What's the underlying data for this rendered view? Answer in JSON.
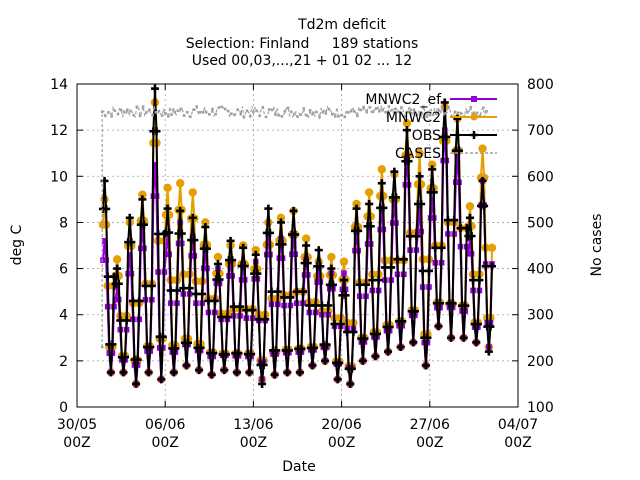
{
  "chart_data": {
    "type": "line",
    "title": "Td2m deficit",
    "subtitle1": "Selection: Finland     189 stations",
    "subtitle2": "Used 00,03,...,21 + 01 02 ... 12",
    "xlabel": "Date",
    "ylabel": "deg C",
    "y2label": "No cases",
    "ylim": [
      0,
      14
    ],
    "y2lim": [
      100,
      800
    ],
    "yticks": [
      "0",
      "2",
      "4",
      "6",
      "8",
      "10",
      "12",
      "14"
    ],
    "y2ticks": [
      "100",
      "200",
      "300",
      "400",
      "500",
      "600",
      "700",
      "800"
    ],
    "xticks": [
      {
        "day": 0,
        "line1": "30/05",
        "line2": "00Z"
      },
      {
        "day": 7,
        "line1": "06/06",
        "line2": "00Z"
      },
      {
        "day": 14,
        "line1": "13/06",
        "line2": "00Z"
      },
      {
        "day": 21,
        "line1": "20/06",
        "line2": "00Z"
      },
      {
        "day": 28,
        "line1": "27/06",
        "line2": "00Z"
      },
      {
        "day": 35,
        "line1": "04/07",
        "line2": "00Z"
      }
    ],
    "xlim_days": [
      0,
      35
    ],
    "grid": true,
    "legend_position": "top-right",
    "series": [
      {
        "name": "MNWC2_ef",
        "color": "#9400d3",
        "marker": "square",
        "axis": "y1"
      },
      {
        "name": "MNWC2",
        "color": "#e69f00",
        "marker": "circle",
        "axis": "y1"
      },
      {
        "name": "OBS",
        "color": "#000000",
        "marker": "plus",
        "axis": "y1"
      },
      {
        "name": "CASES",
        "color": "#a0a0a0",
        "marker": "dash",
        "axis": "y2"
      }
    ],
    "daily_profile": {
      "days": [
        2,
        3,
        4,
        5,
        6,
        7,
        8,
        9,
        10,
        11,
        12,
        13,
        14,
        15,
        16,
        17,
        18,
        19,
        20,
        21,
        22,
        23,
        24,
        25,
        26,
        27,
        28,
        29,
        30,
        31,
        32
      ],
      "obs_max": [
        9.8,
        6.0,
        8.2,
        9.0,
        13.8,
        8.6,
        8.5,
        8.2,
        7.8,
        6.2,
        7.2,
        6.9,
        6.6,
        8.6,
        8.0,
        8.5,
        7.0,
        6.8,
        6.0,
        5.5,
        8.6,
        8.8,
        9.7,
        10.2,
        12.0,
        10.0,
        10.3,
        13.2,
        12.5,
        8.2,
        9.8
      ],
      "obs_min": [
        1.5,
        1.5,
        1.0,
        1.5,
        1.2,
        1.5,
        1.8,
        1.6,
        1.4,
        1.6,
        1.5,
        1.5,
        1.0,
        1.4,
        1.5,
        1.5,
        1.8,
        2.0,
        1.2,
        1.0,
        2.0,
        2.2,
        2.4,
        2.6,
        2.8,
        1.8,
        3.5,
        3.0,
        3.0,
        2.8,
        2.4
      ],
      "mnwc2_max": [
        9.0,
        6.4,
        8.0,
        9.2,
        13.2,
        9.5,
        9.7,
        9.3,
        8.0,
        6.5,
        7.0,
        7.0,
        6.8,
        8.0,
        8.2,
        8.5,
        7.3,
        6.3,
        6.5,
        6.3,
        8.8,
        9.3,
        10.3,
        10.1,
        12.3,
        11.0,
        10.5,
        13.0,
        12.5,
        8.7,
        11.2
      ],
      "mnwc2_min": [
        1.5,
        1.5,
        1.0,
        1.5,
        1.2,
        1.5,
        1.8,
        1.6,
        1.4,
        1.6,
        1.5,
        1.5,
        1.2,
        1.4,
        1.5,
        1.5,
        1.8,
        2.0,
        1.2,
        1.0,
        2.0,
        2.2,
        2.4,
        2.6,
        2.8,
        1.8,
        3.5,
        3.0,
        3.0,
        2.8,
        2.6
      ],
      "ef_max": [
        7.2,
        5.2,
        6.6,
        7.8,
        10.5,
        7.5,
        8.0,
        7.4,
        6.8,
        6.0,
        6.4,
        6.2,
        6.3,
        7.5,
        7.3,
        7.5,
        6.4,
        6.0,
        5.8,
        5.8,
        7.6,
        7.9,
        8.6,
        8.9,
        10.8,
        8.6,
        9.0,
        12.0,
        10.9,
        7.3,
        9.8
      ],
      "ef_min": [
        1.5,
        1.5,
        1.0,
        1.5,
        1.2,
        1.5,
        1.8,
        1.6,
        1.4,
        1.6,
        1.5,
        1.5,
        1.2,
        1.4,
        1.5,
        1.5,
        1.8,
        2.0,
        1.2,
        1.0,
        2.0,
        2.2,
        2.4,
        2.6,
        2.8,
        1.8,
        3.5,
        3.0,
        3.0,
        2.8,
        2.6
      ],
      "cases_level": 740,
      "cases_start": 230,
      "cases_rise_day": 2.0,
      "cases_end_day": 32.5
    }
  }
}
